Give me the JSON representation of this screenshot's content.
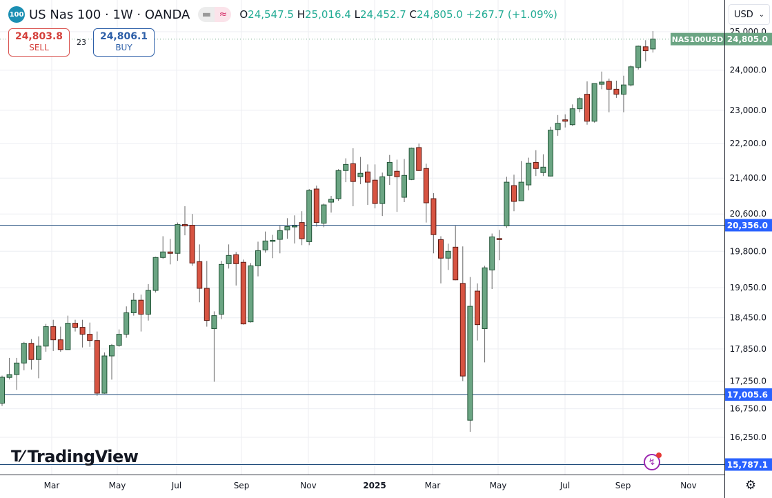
{
  "header": {
    "symbol_badge": "100",
    "title": "US Nas 100 · 1W · OANDA",
    "ohlc": {
      "o_label": "O",
      "o": "24,547.5",
      "h_label": "H",
      "h": "25,016.4",
      "l_label": "L",
      "l": "24,452.7",
      "c_label": "C",
      "c": "24,805.0",
      "change": "+267.7 (+1.09%)"
    },
    "sell_price": "24,803.8",
    "sell_label": "SELL",
    "spread": "23",
    "buy_price": "24,806.1",
    "buy_label": "BUY"
  },
  "currency": "USD",
  "watermark": "TradingView",
  "colors": {
    "up_fill": "#6ba583",
    "up_border": "#225437",
    "down_fill": "#d75442",
    "down_border": "#5b1a13",
    "hline": "#1e4a7a",
    "price_label": "#2962ff",
    "last_price": "#6ba583"
  },
  "chart_data": {
    "type": "candlestick",
    "interval": "1W",
    "y_scale": "log",
    "ylim": [
      15650,
      25300
    ],
    "grid": true,
    "y_ticks": [
      "25,000.0",
      "24,000.0",
      "23,000.0",
      "22,200.0",
      "21,400.0",
      "20,600.0",
      "19,800.0",
      "19,050.0",
      "18,450.0",
      "17,850.0",
      "17,250.0",
      "16,750.0",
      "16,250.0"
    ],
    "y_tick_values": [
      25000,
      24000,
      23000,
      22200,
      21400,
      20600,
      19800,
      19050,
      18450,
      17850,
      17250,
      16750,
      16250
    ],
    "x_ticks": [
      "Mar",
      "May",
      "Jul",
      "Sep",
      "Nov",
      "2025",
      "Mar",
      "May",
      "Jul",
      "Sep",
      "Nov"
    ],
    "horizontal_lines": [
      {
        "value": 20356.0,
        "label": "20,356.0"
      },
      {
        "value": 17005.6,
        "label": "17,005.6"
      },
      {
        "value": 15787.1,
        "label": "15,787.1"
      }
    ],
    "last_price": {
      "value": 24805.0,
      "label": "24,805.0",
      "symbol": "NAS100USD"
    },
    "candles_ohlc": [
      [
        16850,
        17350,
        16800,
        17320
      ],
      [
        17317,
        17680,
        17280,
        17370
      ],
      [
        17370,
        17680,
        17090,
        17584
      ],
      [
        17584,
        17983,
        17450,
        17956
      ],
      [
        17956,
        18036,
        17463,
        17650
      ],
      [
        17650,
        18090,
        17303,
        17903
      ],
      [
        17903,
        18330,
        17797,
        18277
      ],
      [
        18277,
        18410,
        17810,
        18023
      ],
      [
        18023,
        18277,
        17797,
        17837
      ],
      [
        17837,
        18492,
        17837,
        18343
      ],
      [
        18343,
        18410,
        18183,
        18263
      ],
      [
        18263,
        18410,
        17877,
        18130
      ],
      [
        18130,
        18356,
        17890,
        18010
      ],
      [
        18010,
        18183,
        16982,
        17030
      ],
      [
        17030,
        17783,
        17020,
        17717
      ],
      [
        17717,
        17943,
        17277,
        17917
      ],
      [
        17917,
        18223,
        17890,
        18130
      ],
      [
        18130,
        18674,
        18063,
        18548
      ],
      [
        18548,
        18938,
        18492,
        18798
      ],
      [
        18798,
        18910,
        18183,
        18520
      ],
      [
        18520,
        19122,
        18395,
        18994
      ],
      [
        18994,
        19685,
        18952,
        19670
      ],
      [
        19670,
        20119,
        19640,
        19786
      ],
      [
        19786,
        20062,
        19526,
        19757
      ],
      [
        19757,
        20414,
        19600,
        20370
      ],
      [
        20370,
        20770,
        20140,
        20340
      ],
      [
        20356,
        20600,
        19497,
        19555
      ],
      [
        19584,
        19945,
        18756,
        19036
      ],
      [
        19036,
        19598,
        18277,
        18397
      ],
      [
        18237,
        18576,
        17238,
        18492
      ],
      [
        18520,
        19598,
        18423,
        19526
      ],
      [
        19540,
        19945,
        19440,
        19713
      ],
      [
        19728,
        19786,
        19093,
        19540
      ],
      [
        19570,
        19627,
        18316,
        18330
      ],
      [
        18370,
        19555,
        18356,
        19497
      ],
      [
        19497,
        20003,
        19280,
        19814
      ],
      [
        19829,
        20220,
        19771,
        20018
      ],
      [
        20020,
        20148,
        19656,
        20032
      ],
      [
        20052,
        20341,
        19757,
        20240
      ],
      [
        20255,
        20508,
        20066,
        20327
      ],
      [
        20340,
        20570,
        19965,
        20341
      ],
      [
        20414,
        20661,
        19930,
        20066
      ],
      [
        20003,
        21154,
        19930,
        21123
      ],
      [
        21154,
        21231,
        20327,
        20414
      ],
      [
        20400,
        20830,
        20313,
        20800
      ],
      [
        20861,
        21000,
        20631,
        20923
      ],
      [
        20938,
        21604,
        20892,
        21573
      ],
      [
        21573,
        21855,
        21308,
        21714
      ],
      [
        21730,
        22090,
        20770,
        21323
      ],
      [
        21431,
        21886,
        21262,
        21510
      ],
      [
        21541,
        21714,
        20800,
        21308
      ],
      [
        21354,
        21714,
        20723,
        20830
      ],
      [
        20830,
        21526,
        20556,
        21431
      ],
      [
        21462,
        21933,
        21246,
        21761
      ],
      [
        21557,
        21824,
        20646,
        21431
      ],
      [
        20969,
        21840,
        20861,
        21462
      ],
      [
        21369,
        22106,
        21354,
        22090
      ],
      [
        22106,
        22200,
        21560,
        21573
      ],
      [
        21620,
        21730,
        20414,
        20846
      ],
      [
        20938,
        21061,
        19757,
        20153
      ],
      [
        20047,
        20119,
        19136,
        19656
      ],
      [
        19656,
        19960,
        19411,
        19800
      ],
      [
        19887,
        20341,
        19200,
        19208
      ],
      [
        19136,
        19902,
        17250,
        17343
      ],
      [
        16548,
        19266,
        16345,
        18676
      ],
      [
        18980,
        19136,
        18010,
        18316
      ],
      [
        18237,
        19497,
        17597,
        19455
      ],
      [
        19411,
        20177,
        19022,
        20105
      ],
      [
        20070,
        20255,
        19613,
        20050
      ],
      [
        20341,
        21431,
        20298,
        21308
      ],
      [
        21231,
        21478,
        20661,
        20877
      ],
      [
        20892,
        21792,
        20892,
        21308
      ],
      [
        21246,
        21870,
        21123,
        21745
      ],
      [
        21761,
        22043,
        21447,
        21620
      ],
      [
        21526,
        21949,
        21447,
        21651
      ],
      [
        21447,
        22600,
        21440,
        22517
      ],
      [
        22533,
        22883,
        22384,
        22683
      ],
      [
        22767,
        22900,
        22583,
        22733
      ],
      [
        22650,
        23143,
        22617,
        23036
      ],
      [
        23036,
        23322,
        22950,
        23286
      ],
      [
        23394,
        23716,
        22650,
        22733
      ],
      [
        22733,
        23662,
        22700,
        23662
      ],
      [
        23644,
        23964,
        23519,
        23698
      ],
      [
        23716,
        23787,
        22950,
        23519
      ],
      [
        23519,
        23734,
        23304,
        23394
      ],
      [
        23394,
        23859,
        22950,
        23626
      ],
      [
        23626,
        24120,
        23590,
        24086
      ],
      [
        24069,
        24636,
        24017,
        24619
      ],
      [
        24604,
        24776,
        24224,
        24500
      ],
      [
        24547.5,
        25016.4,
        24452.7,
        24805.0
      ]
    ]
  }
}
